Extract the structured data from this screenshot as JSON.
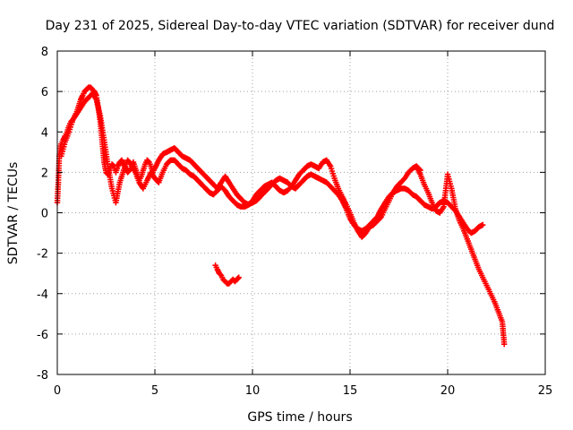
{
  "chart_data": {
    "type": "scatter",
    "title": "Day 231 of 2025, Sidereal Day-to-day VTEC variation (SDTVAR) for receiver dund",
    "xlabel": "GPS time / hours",
    "ylabel": "SDTVAR / TECUs",
    "xlim": [
      0,
      25
    ],
    "ylim": [
      -8,
      8
    ],
    "xticks": [
      0,
      5,
      10,
      15,
      20,
      25
    ],
    "xtick_labels": [
      "0",
      "5",
      "10",
      "15",
      "20",
      "25"
    ],
    "yticks": [
      -8,
      -6,
      -4,
      -2,
      0,
      2,
      4,
      6,
      8
    ],
    "ytick_labels": [
      "-8",
      "-6",
      "-4",
      "-2",
      "0",
      "2",
      "4",
      "6",
      "8"
    ],
    "grid": true,
    "marker": "+",
    "series_color": "#ff0000",
    "series": [
      {
        "name": "SDTVAR",
        "segments": [
          {
            "x": [
              0.0,
              0.05,
              0.1,
              0.15,
              0.2,
              0.3,
              0.4,
              0.5,
              0.6,
              0.7,
              0.8,
              0.9,
              1.0,
              1.1,
              1.2,
              1.3,
              1.4,
              1.5,
              1.6,
              1.7,
              1.8,
              1.9,
              2.0,
              2.1,
              2.2,
              2.3,
              2.4,
              2.5,
              2.6,
              2.7,
              2.8,
              2.9,
              3.0,
              3.1,
              3.2,
              3.3,
              3.4,
              3.5,
              3.6,
              3.7,
              3.8,
              3.9,
              4.0,
              4.1,
              4.2,
              4.3,
              4.4,
              4.5,
              4.6,
              4.7,
              4.8,
              4.9,
              5.0,
              5.2,
              5.4,
              5.6,
              5.8,
              6.0,
              6.2,
              6.4,
              6.6,
              6.8,
              7.0,
              7.2,
              7.4,
              7.6,
              7.8,
              8.0,
              8.2,
              8.4,
              8.6,
              8.8,
              9.0,
              9.2,
              9.4,
              9.6,
              9.8,
              10.0,
              10.2,
              10.4,
              10.6,
              10.8,
              11.0,
              11.2,
              11.4,
              11.6,
              11.8,
              12.0,
              12.2,
              12.4,
              12.6,
              12.8,
              13.0,
              13.2,
              13.4,
              13.6,
              13.8,
              14.0,
              14.2,
              14.4,
              14.6,
              14.8,
              15.0,
              15.2,
              15.4,
              15.6,
              15.8,
              16.0,
              16.2,
              16.4,
              16.6,
              16.8,
              17.0,
              17.2,
              17.4,
              17.6,
              17.8,
              18.0,
              18.2,
              18.4,
              18.6,
              18.8,
              19.0,
              19.2,
              19.4,
              19.6,
              19.8,
              20.0,
              20.2,
              20.4,
              20.6,
              20.8,
              21.0,
              21.2,
              21.4,
              21.6,
              21.8
            ],
            "y": [
              0.5,
              1.5,
              2.8,
              3.2,
              3.4,
              3.6,
              3.8,
              4.0,
              4.3,
              4.5,
              4.6,
              4.8,
              5.0,
              5.3,
              5.6,
              5.8,
              6.0,
              6.1,
              6.2,
              6.2,
              6.1,
              6.0,
              5.8,
              5.2,
              4.5,
              3.5,
              2.5,
              2.0,
              1.9,
              2.2,
              2.4,
              2.3,
              2.0,
              2.3,
              2.5,
              2.6,
              2.4,
              2.2,
              2.0,
              2.1,
              2.3,
              2.5,
              2.2,
              1.9,
              1.6,
              1.8,
              2.1,
              2.4,
              2.6,
              2.5,
              2.3,
              2.0,
              2.2,
              2.6,
              2.9,
              3.0,
              3.1,
              3.2,
              3.0,
              2.8,
              2.7,
              2.6,
              2.4,
              2.2,
              2.0,
              1.8,
              1.6,
              1.4,
              1.2,
              1.5,
              1.8,
              1.5,
              1.2,
              0.9,
              0.7,
              0.5,
              0.4,
              0.5,
              0.6,
              0.8,
              1.0,
              1.2,
              1.4,
              1.6,
              1.7,
              1.6,
              1.5,
              1.3,
              1.2,
              1.4,
              1.6,
              1.8,
              1.9,
              1.8,
              1.7,
              1.6,
              1.5,
              1.3,
              1.1,
              0.9,
              0.6,
              0.2,
              -0.3,
              -0.6,
              -0.8,
              -0.9,
              -0.8,
              -0.6,
              -0.4,
              -0.2,
              0.2,
              0.5,
              0.8,
              1.0,
              1.1,
              1.2,
              1.2,
              1.1,
              0.9,
              0.8,
              0.6,
              0.4,
              0.3,
              0.2,
              0.3,
              0.5,
              0.6,
              0.5,
              0.3,
              0.1,
              -0.2,
              -0.5,
              -0.8,
              -1.0,
              -0.9,
              -0.7,
              -0.6
            ]
          },
          {
            "x": [
              0.2,
              0.4,
              0.6,
              0.8,
              1.0,
              1.2,
              1.4,
              1.6,
              1.8,
              2.0,
              2.2,
              2.4,
              2.6,
              2.8,
              3.0,
              3.2,
              3.4,
              3.6,
              3.8,
              4.0,
              4.2,
              4.4,
              4.6,
              4.8,
              5.0,
              5.2,
              5.4,
              5.6,
              5.8,
              6.0,
              6.2,
              6.4,
              6.6,
              6.8,
              7.0,
              7.2,
              7.4,
              7.6,
              7.8,
              8.0,
              8.2,
              8.4,
              8.6,
              8.8,
              9.0,
              9.2,
              9.4,
              9.6,
              9.8,
              10.0,
              10.2,
              10.4,
              10.6,
              10.8,
              11.0,
              11.2,
              11.4,
              11.6,
              11.8,
              12.0,
              12.2,
              12.4,
              12.6,
              12.8,
              13.0,
              13.2,
              13.4,
              13.6,
              13.8,
              14.0,
              14.2,
              14.4,
              14.6,
              14.8,
              15.0,
              15.2,
              15.4,
              15.6,
              15.8,
              16.0,
              16.2,
              16.4,
              16.6,
              16.8,
              17.0,
              17.2,
              17.4,
              17.6,
              17.8,
              18.0,
              18.2,
              18.4,
              18.6
            ],
            "y": [
              2.8,
              3.5,
              4.0,
              4.6,
              4.9,
              5.2,
              5.5,
              5.7,
              5.9,
              5.6,
              4.8,
              3.6,
              2.3,
              1.2,
              0.5,
              1.5,
              2.1,
              2.6,
              2.4,
              2.0,
              1.5,
              1.2,
              1.6,
              2.0,
              1.7,
              1.5,
              2.0,
              2.4,
              2.6,
              2.6,
              2.4,
              2.2,
              2.1,
              1.9,
              1.8,
              1.6,
              1.4,
              1.2,
              1.0,
              0.9,
              1.1,
              1.3,
              1.1,
              0.8,
              0.6,
              0.4,
              0.3,
              0.3,
              0.4,
              0.6,
              0.9,
              1.1,
              1.3,
              1.4,
              1.5,
              1.3,
              1.1,
              1.0,
              1.1,
              1.3,
              1.6,
              1.9,
              2.1,
              2.3,
              2.4,
              2.3,
              2.2,
              2.5,
              2.6,
              2.3,
              1.7,
              1.2,
              0.8,
              0.4,
              0.0,
              -0.5,
              -0.9,
              -1.2,
              -1.0,
              -0.7,
              -0.6,
              -0.4,
              -0.2,
              0.2,
              0.6,
              1.0,
              1.3,
              1.5,
              1.7,
              2.0,
              2.2,
              2.3,
              2.1
            ]
          },
          {
            "x": [
              18.4,
              18.6,
              18.8,
              19.0,
              19.2,
              19.4,
              19.6,
              19.8,
              20.0,
              20.2,
              20.4,
              20.6,
              20.8,
              21.0,
              21.2,
              21.4,
              21.6,
              21.8,
              22.0,
              22.2,
              22.4,
              22.6,
              22.8,
              22.9
            ],
            "y": [
              2.3,
              1.9,
              1.4,
              1.0,
              0.5,
              0.1,
              0.0,
              0.3,
              1.9,
              1.2,
              0.2,
              -0.4,
              -0.8,
              -1.3,
              -1.8,
              -2.3,
              -2.8,
              -3.2,
              -3.6,
              -4.0,
              -4.4,
              -4.9,
              -5.4,
              -6.5
            ]
          },
          {
            "x": [
              8.1,
              8.2,
              8.3,
              8.4,
              8.5,
              8.6,
              8.7,
              8.8,
              8.9,
              9.0,
              9.1,
              9.2,
              9.3
            ],
            "y": [
              -2.6,
              -2.8,
              -3.0,
              -3.1,
              -3.3,
              -3.4,
              -3.5,
              -3.5,
              -3.4,
              -3.3,
              -3.4,
              -3.3,
              -3.2
            ]
          }
        ]
      }
    ]
  }
}
